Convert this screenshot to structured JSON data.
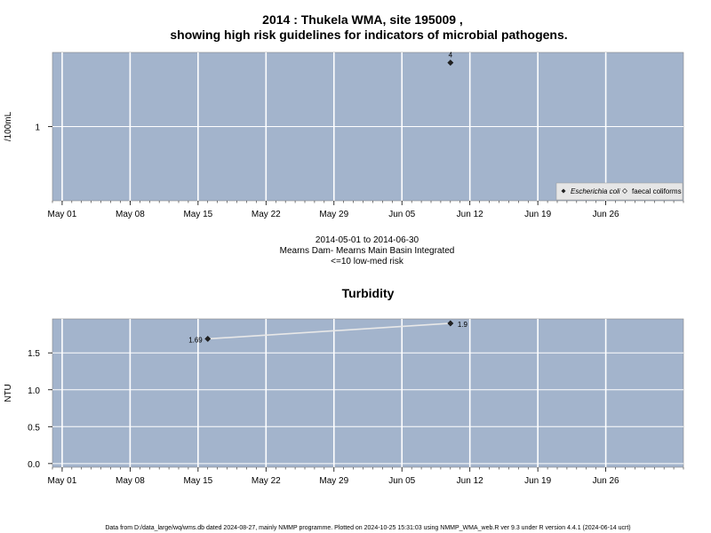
{
  "header": {
    "title_line1": "2014 : Thukela WMA, site 195009 ,",
    "title_line2": "showing high risk guidelines for indicators of microbial pathogens."
  },
  "chart_data": [
    {
      "type": "scatter",
      "ylabel": "/100mL",
      "y_ticks": [
        {
          "value": 1,
          "label": "1"
        }
      ],
      "y_scale": "log",
      "x_ticks": [
        "May 01",
        "May 08",
        "May 15",
        "May 22",
        "May 29",
        "Jun 05",
        "Jun 12",
        "Jun 19",
        "Jun 26"
      ],
      "xlim": [
        "2014-04-30",
        "2014-07-04"
      ],
      "ylim": [
        0.2,
        5
      ],
      "grid": true,
      "legend_position": "bottom-right",
      "series": [
        {
          "name": "Escherichia coli",
          "points": [
            {
              "x": "2014-06-10",
              "y": 4,
              "label": "4"
            }
          ]
        },
        {
          "name": "faecal coliforms",
          "points": []
        }
      ],
      "caption_lines": [
        "2014-05-01 to 2014-06-30",
        "Mearns Dam- Mearns Main Basin Integrated",
        "<=10 low-med risk"
      ]
    },
    {
      "type": "line",
      "title": "Turbidity",
      "ylabel": "NTU",
      "y_ticks": [
        {
          "value": 0,
          "label": "0.0"
        },
        {
          "value": 0.5,
          "label": "0.5"
        },
        {
          "value": 1.0,
          "label": "1.0"
        },
        {
          "value": 1.5,
          "label": "1.5"
        }
      ],
      "x_ticks": [
        "May 01",
        "May 08",
        "May 15",
        "May 22",
        "May 29",
        "Jun 05",
        "Jun 12",
        "Jun 19",
        "Jun 26"
      ],
      "xlim": [
        "2014-04-30",
        "2014-07-04"
      ],
      "ylim": [
        -0.05,
        1.96
      ],
      "grid": true,
      "series": [
        {
          "name": "",
          "points": [
            {
              "x": "2014-05-16",
              "y": 1.69,
              "label": "1.69"
            },
            {
              "x": "2014-06-10",
              "y": 1.9,
              "label": "1.9"
            }
          ]
        }
      ]
    }
  ],
  "footer": {
    "text": "Data from D:/data_large/wq/wms.db dated 2024-08-27, mainly NMMP programme. Plotted on 2024-10-25 15:31:03 using NMMP_WMA_web.R ver 9.3 under R version 4.4.1 (2024-06-14 ucrt)"
  },
  "colors": {
    "panel": "#a3b4cc",
    "grid": "#ffffff",
    "point": "#222222",
    "line": "#e8e8e8",
    "legend_bg": "#e6e6e6"
  }
}
